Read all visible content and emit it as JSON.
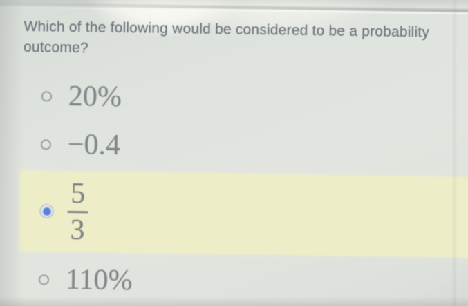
{
  "question": {
    "text": "Which of the following would be considered to be a probability outcome?"
  },
  "options": [
    {
      "label": "20%",
      "selected": false
    },
    {
      "label": "−0.4",
      "selected": false
    },
    {
      "numerator": "5",
      "denominator": "3",
      "selected": true,
      "highlighted": true
    },
    {
      "label": "110%",
      "selected": false
    }
  ],
  "state": {
    "selected_option_index": 2
  },
  "colors": {
    "radio_selected_blue": "#5c81d4",
    "highlight_yellow": "#edeec8",
    "question_text": "#6d757b",
    "option_text": "#82878a",
    "background": "#dfe3dd"
  }
}
